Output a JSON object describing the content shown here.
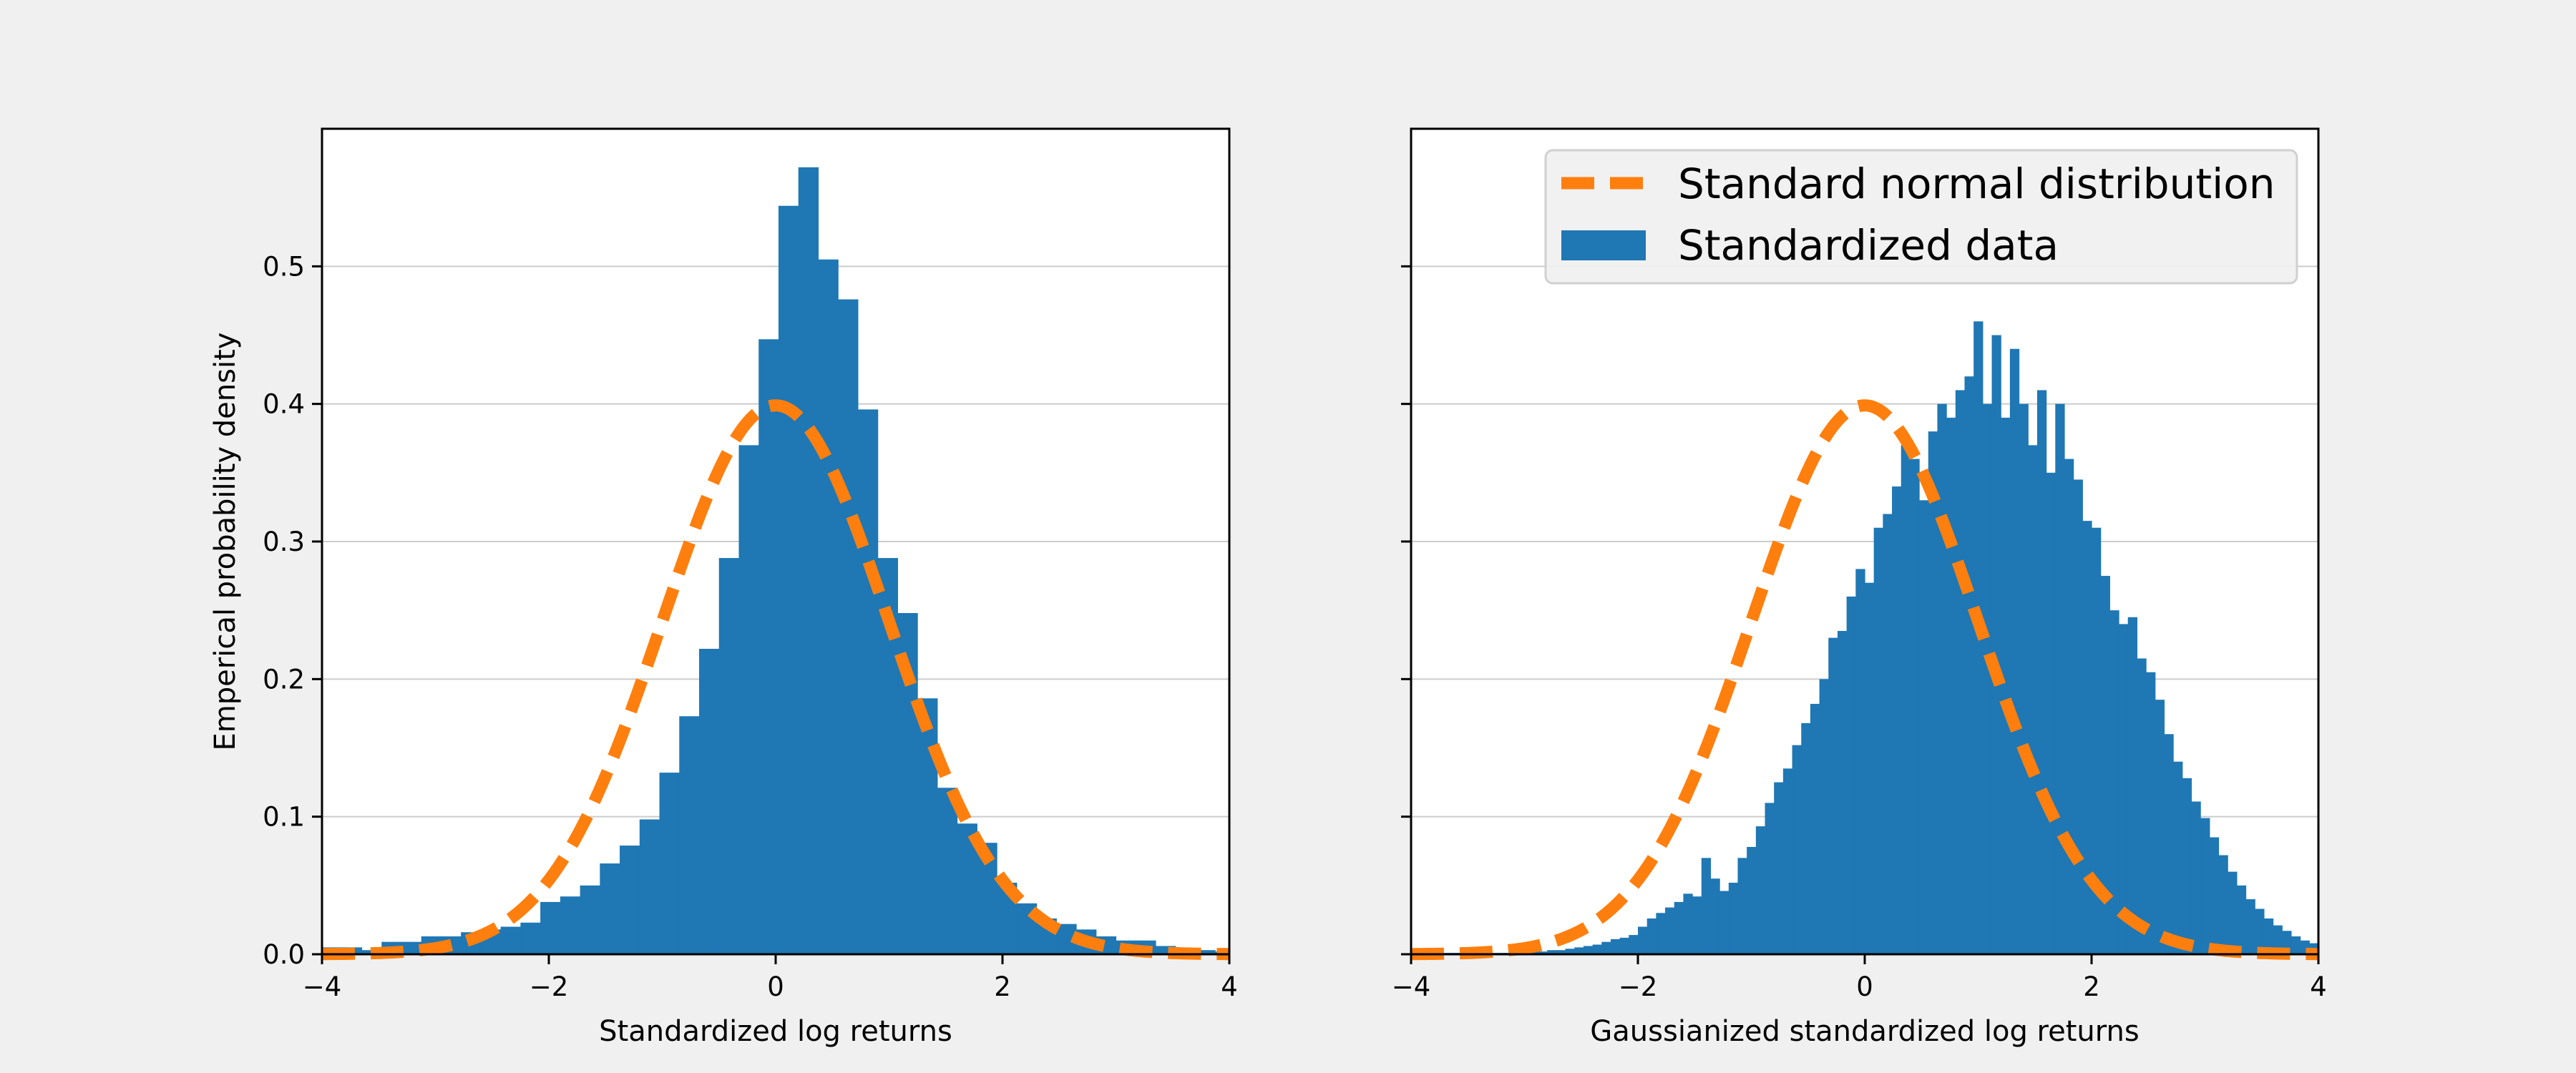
{
  "colors": {
    "bar": "#1f77b4",
    "curve": "#ff7f0e",
    "grid": "#cccccc",
    "background": "#f0f0f0",
    "plot_bg": "#ffffff"
  },
  "legend": {
    "placement": "top-right of right panel",
    "entries": [
      {
        "label": "Standard normal distribution",
        "style": "dashed-line",
        "color": "#ff7f0e"
      },
      {
        "label": "Standardized data",
        "style": "patch",
        "color": "#1f77b4"
      }
    ]
  },
  "chart_data": [
    {
      "type": "histogram",
      "xlabel": "Standardized log returns",
      "ylabel": "Emperical probability density",
      "xlim": [
        -4,
        4
      ],
      "ylim": [
        0,
        0.6
      ],
      "xticks": [
        "−4",
        "−2",
        "0",
        "2",
        "4"
      ],
      "yticks": [
        "0.0",
        "0.1",
        "0.2",
        "0.3",
        "0.4",
        "0.5"
      ],
      "grid_y": true,
      "bin_start": -4.0,
      "bin_width": 0.175,
      "values": [
        0.005,
        0.005,
        0.003,
        0.009,
        0.009,
        0.013,
        0.013,
        0.016,
        0.018,
        0.02,
        0.023,
        0.038,
        0.042,
        0.05,
        0.066,
        0.079,
        0.098,
        0.132,
        0.173,
        0.222,
        0.288,
        0.37,
        0.447,
        0.544,
        0.572,
        0.505,
        0.476,
        0.396,
        0.288,
        0.248,
        0.186,
        0.121,
        0.095,
        0.081,
        0.052,
        0.037,
        0.026,
        0.022,
        0.018,
        0.013,
        0.01,
        0.01,
        0.006,
        0.004,
        0.003,
        0.002
      ],
      "curve": {
        "name": "Standard normal distribution",
        "type": "normal-pdf",
        "mean": 0,
        "sd": 1
      }
    },
    {
      "type": "histogram",
      "xlabel": "Gaussianized standardized log returns",
      "ylabel": "",
      "xlim": [
        -4,
        4
      ],
      "ylim": [
        0,
        0.6
      ],
      "xticks": [
        "−4",
        "−2",
        "0",
        "2",
        "4"
      ],
      "yticks": [
        "",
        "",
        "",
        "",
        "",
        ""
      ],
      "grid_y": true,
      "bin_start": -4.0,
      "bin_width": 0.08,
      "values": [
        0.001,
        0.001,
        0.001,
        0.001,
        0.001,
        0.001,
        0.001,
        0.001,
        0.001,
        0.001,
        0.001,
        0.001,
        0.001,
        0.002,
        0.002,
        0.003,
        0.003,
        0.004,
        0.005,
        0.006,
        0.007,
        0.009,
        0.011,
        0.012,
        0.014,
        0.02,
        0.026,
        0.03,
        0.034,
        0.038,
        0.044,
        0.042,
        0.07,
        0.055,
        0.046,
        0.052,
        0.07,
        0.078,
        0.093,
        0.11,
        0.125,
        0.135,
        0.152,
        0.168,
        0.182,
        0.2,
        0.23,
        0.235,
        0.26,
        0.28,
        0.27,
        0.31,
        0.32,
        0.34,
        0.37,
        0.36,
        0.33,
        0.38,
        0.4,
        0.39,
        0.41,
        0.42,
        0.46,
        0.4,
        0.45,
        0.39,
        0.44,
        0.4,
        0.37,
        0.41,
        0.35,
        0.4,
        0.36,
        0.345,
        0.315,
        0.31,
        0.275,
        0.25,
        0.24,
        0.245,
        0.215,
        0.205,
        0.185,
        0.16,
        0.14,
        0.128,
        0.111,
        0.099,
        0.085,
        0.072,
        0.06,
        0.05,
        0.04,
        0.033,
        0.026,
        0.021,
        0.017,
        0.013,
        0.01,
        0.008,
        0.006,
        0.01,
        0.005,
        0.004,
        0.003,
        0.002,
        0.002,
        0.001,
        0.001,
        0.001,
        0.001,
        0.001,
        0.001,
        0.001,
        0.001,
        0.001,
        0.001,
        0.001,
        0.001,
        0.001,
        0.004,
        0.001,
        0.001,
        0.001,
        0.001,
        0.001,
        0.001,
        0.001,
        0.001,
        0.001,
        0.001,
        0.001,
        0.001,
        0.001,
        0.001,
        0.001,
        0.001,
        0.001,
        0.001,
        0.001,
        0.001,
        0.001,
        0.001,
        0.001,
        0.001,
        0.001
      ],
      "curve": {
        "name": "Standard normal distribution",
        "type": "normal-pdf",
        "mean": 0,
        "sd": 1
      }
    }
  ]
}
